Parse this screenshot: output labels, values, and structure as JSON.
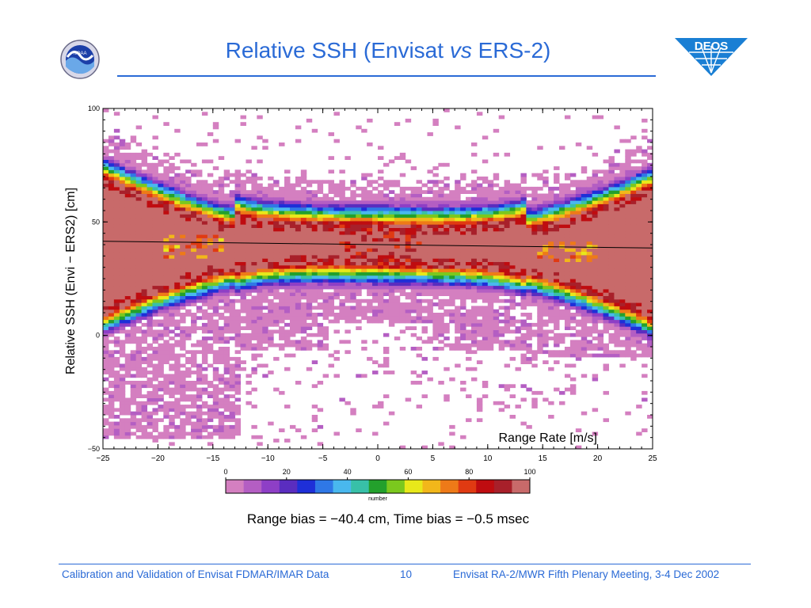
{
  "slide": {
    "title_pre": "Relative SSH (Envisat ",
    "title_em": "vs",
    "title_post": " ERS-2)",
    "logo_left": "NOAA",
    "logo_right": "DEOS",
    "bias_text": "Range bias = −40.4 cm, Time bias = −0.5 msec",
    "footer": {
      "left": "Calibration and Validation of Envisat FDMAR/IMAR Data",
      "page": "10",
      "right": "Envisat RA-2/MWR Fifth Plenary Meeting, 3-4 Dec 2002"
    }
  },
  "chart_data": {
    "type": "heatmap",
    "xlabel": "Range Rate [m/s]",
    "ylabel": "Relative SSH (Envi − ERS2) [cm]",
    "xlim": [
      -25,
      25
    ],
    "ylim": [
      -50,
      100
    ],
    "x_ticks": [
      -25,
      -20,
      -15,
      -10,
      -5,
      0,
      5,
      10,
      15,
      20,
      25
    ],
    "x_tick_labels": [
      "−25",
      "−20",
      "−15",
      "−10",
      "−5",
      "0",
      "5",
      "10",
      "15",
      "20",
      "25"
    ],
    "y_ticks": [
      -50,
      0,
      50,
      100
    ],
    "y_tick_labels": [
      "−50",
      "0",
      "50",
      "100"
    ],
    "colorbar": {
      "label": "number",
      "range": [
        0,
        100
      ],
      "ticks": [
        0,
        20,
        40,
        60,
        80,
        100
      ],
      "colors": [
        "#d47fc0",
        "#b45ec3",
        "#8e3fc6",
        "#5a2dbf",
        "#1e2fd8",
        "#2f78e6",
        "#49b8ee",
        "#38c0a8",
        "#23a02c",
        "#7bc81e",
        "#e8e81a",
        "#f2b71a",
        "#ee7a18",
        "#e03a12",
        "#bf0c10",
        "#a8202a",
        "#c86a6a"
      ]
    },
    "regression_line": {
      "x": [
        -25,
        25
      ],
      "y": [
        41.5,
        38.5
      ]
    },
    "bias": {
      "range_cm": -40.4,
      "time_msec": -0.5
    }
  }
}
